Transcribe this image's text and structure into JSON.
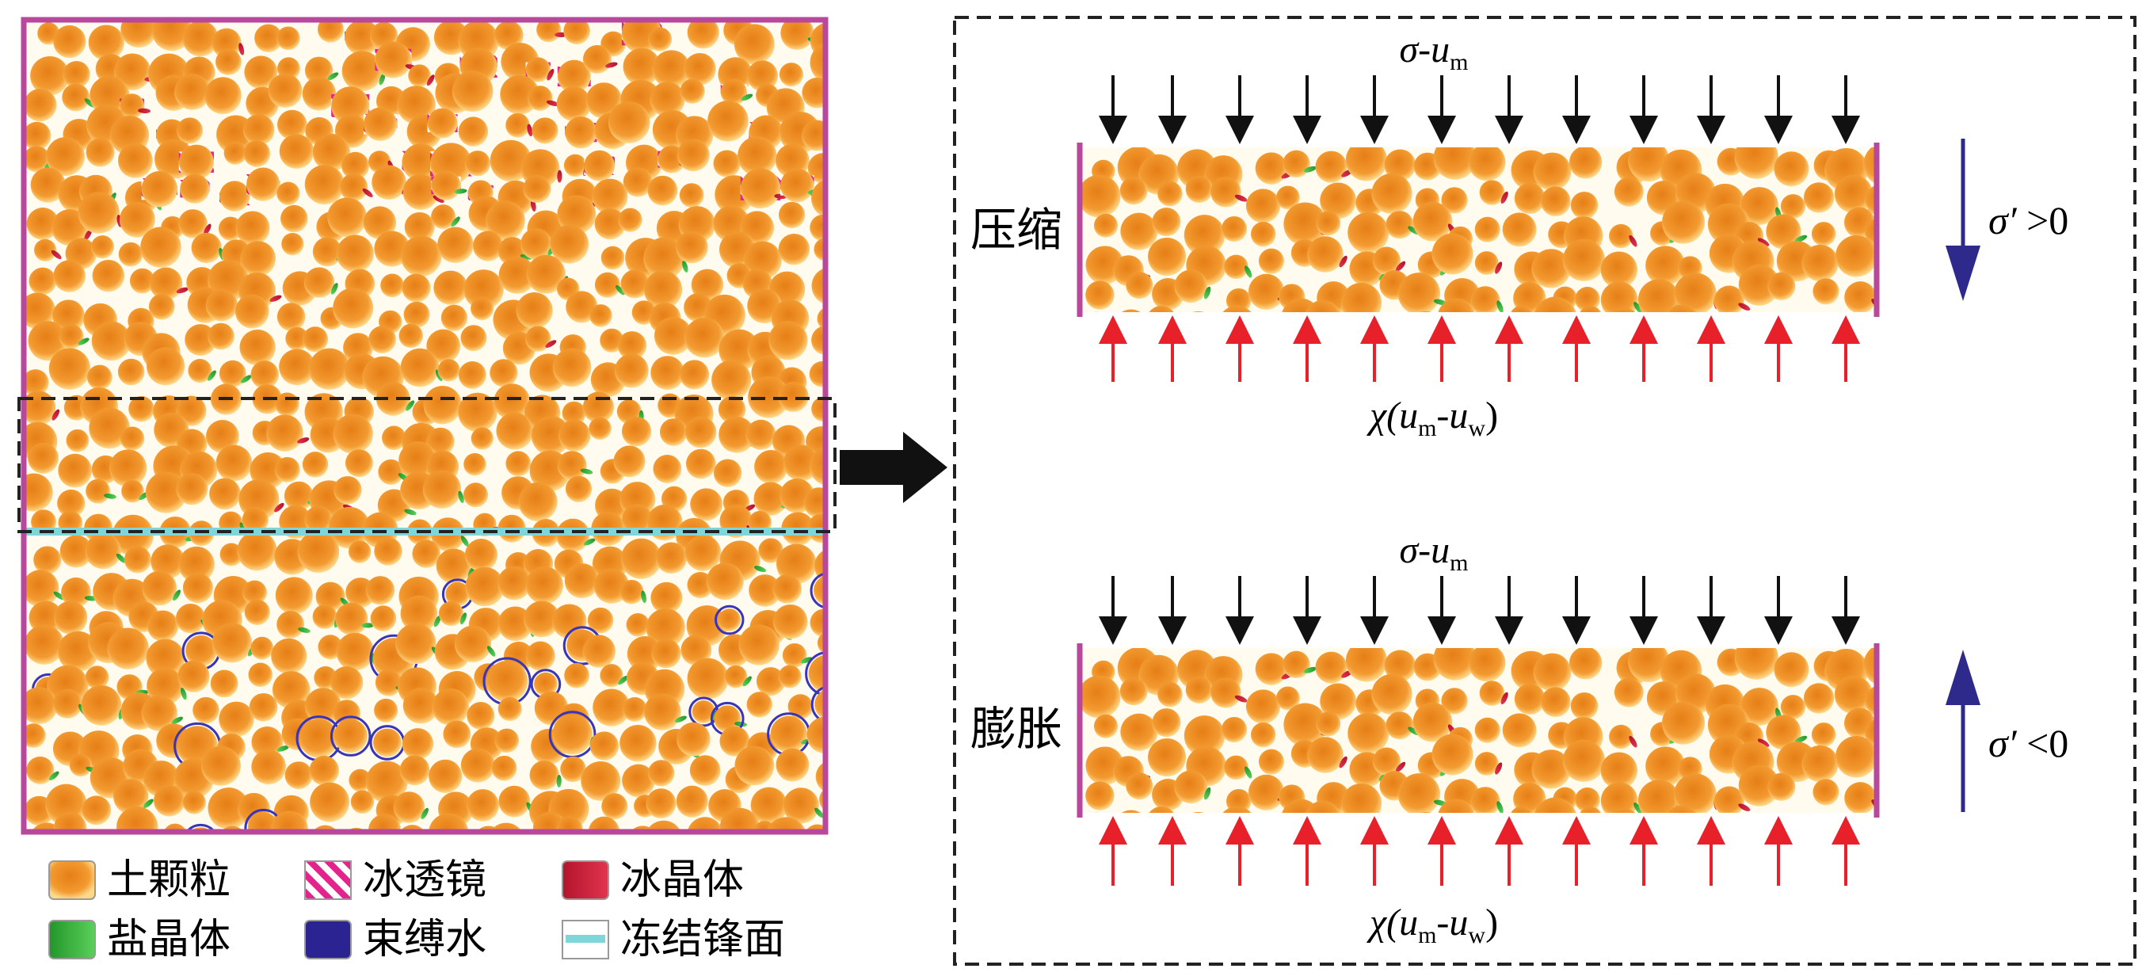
{
  "legend": [
    {
      "key": "soil",
      "label": "土颗粒",
      "color": "#F0922E"
    },
    {
      "key": "ice_lens",
      "label": "冰透镜",
      "color": "#E3248C"
    },
    {
      "key": "ice_crystal",
      "label": "冰晶体",
      "color": "#D9213C"
    },
    {
      "key": "salt_crystal",
      "label": "盐晶体",
      "color": "#3DB33D"
    },
    {
      "key": "bound_water",
      "label": "束缚水",
      "color": "#2B2391"
    },
    {
      "key": "freezing_front",
      "label": "冻结锋面",
      "color": "#7FD6D9"
    }
  ],
  "panels": [
    {
      "side_label": "压缩",
      "top_load": {
        "sym": "σ",
        "sep": "-",
        "var": "u",
        "sub": "m"
      },
      "bottom_load": {
        "pre": "χ(",
        "a": "u",
        "asub": "m",
        "sep": "-",
        "b": "u",
        "bsub": "w",
        "post": ")"
      },
      "stress": {
        "sym": "σ′",
        "rel": " >0",
        "direction": "down"
      }
    },
    {
      "side_label": "膨胀",
      "top_load": {
        "sym": "σ",
        "sep": "-",
        "var": "u",
        "sub": "m"
      },
      "bottom_load": {
        "pre": "χ(",
        "a": "u",
        "asub": "m",
        "sep": "-",
        "b": "u",
        "bsub": "w",
        "post": ")"
      },
      "stress": {
        "sym": "σ′",
        "rel": " <0",
        "direction": "up"
      }
    }
  ],
  "colors": {
    "frame": "#B8489B",
    "soil_light": "#FFD27A",
    "soil_dark": "#E07A14",
    "pore": "#FFFBEF",
    "down_arrow": "#111111",
    "up_arrow": "#E8202A",
    "stress_arrow": "#2E2A8C",
    "dash": "#222222"
  }
}
